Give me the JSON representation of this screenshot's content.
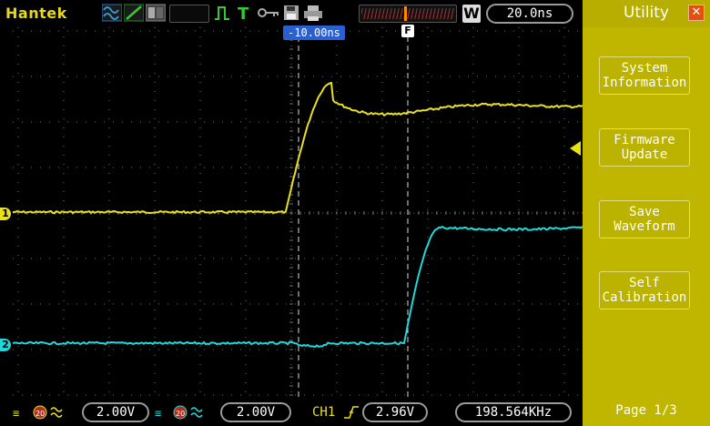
{
  "header": {
    "brand": "Hantek",
    "trigger_mode_letter": "W",
    "timebase": "20.0ns"
  },
  "scope": {
    "trigger_position_label": "-10.00ns",
    "trigger_marker": "F",
    "channel1_marker": "1",
    "channel2_marker": "2",
    "colors": {
      "ch1": "#e8e020",
      "ch2": "#20d8d8",
      "grid": "#707070",
      "cursor": "#ffffff"
    }
  },
  "bottom": {
    "ch1_volts": "2.00V",
    "ch2_volts": "2.00V",
    "trigger_channel": "CH1",
    "trigger_level": "2.96V",
    "frequency": "198.564KHz"
  },
  "menu": {
    "title": "Utility",
    "items": [
      {
        "label": "System\nInformation"
      },
      {
        "label": "Firmware\nUpdate"
      },
      {
        "label": "Save\nWaveform"
      },
      {
        "label": "Self\nCalibration"
      }
    ],
    "page": "Page 1/3"
  }
}
